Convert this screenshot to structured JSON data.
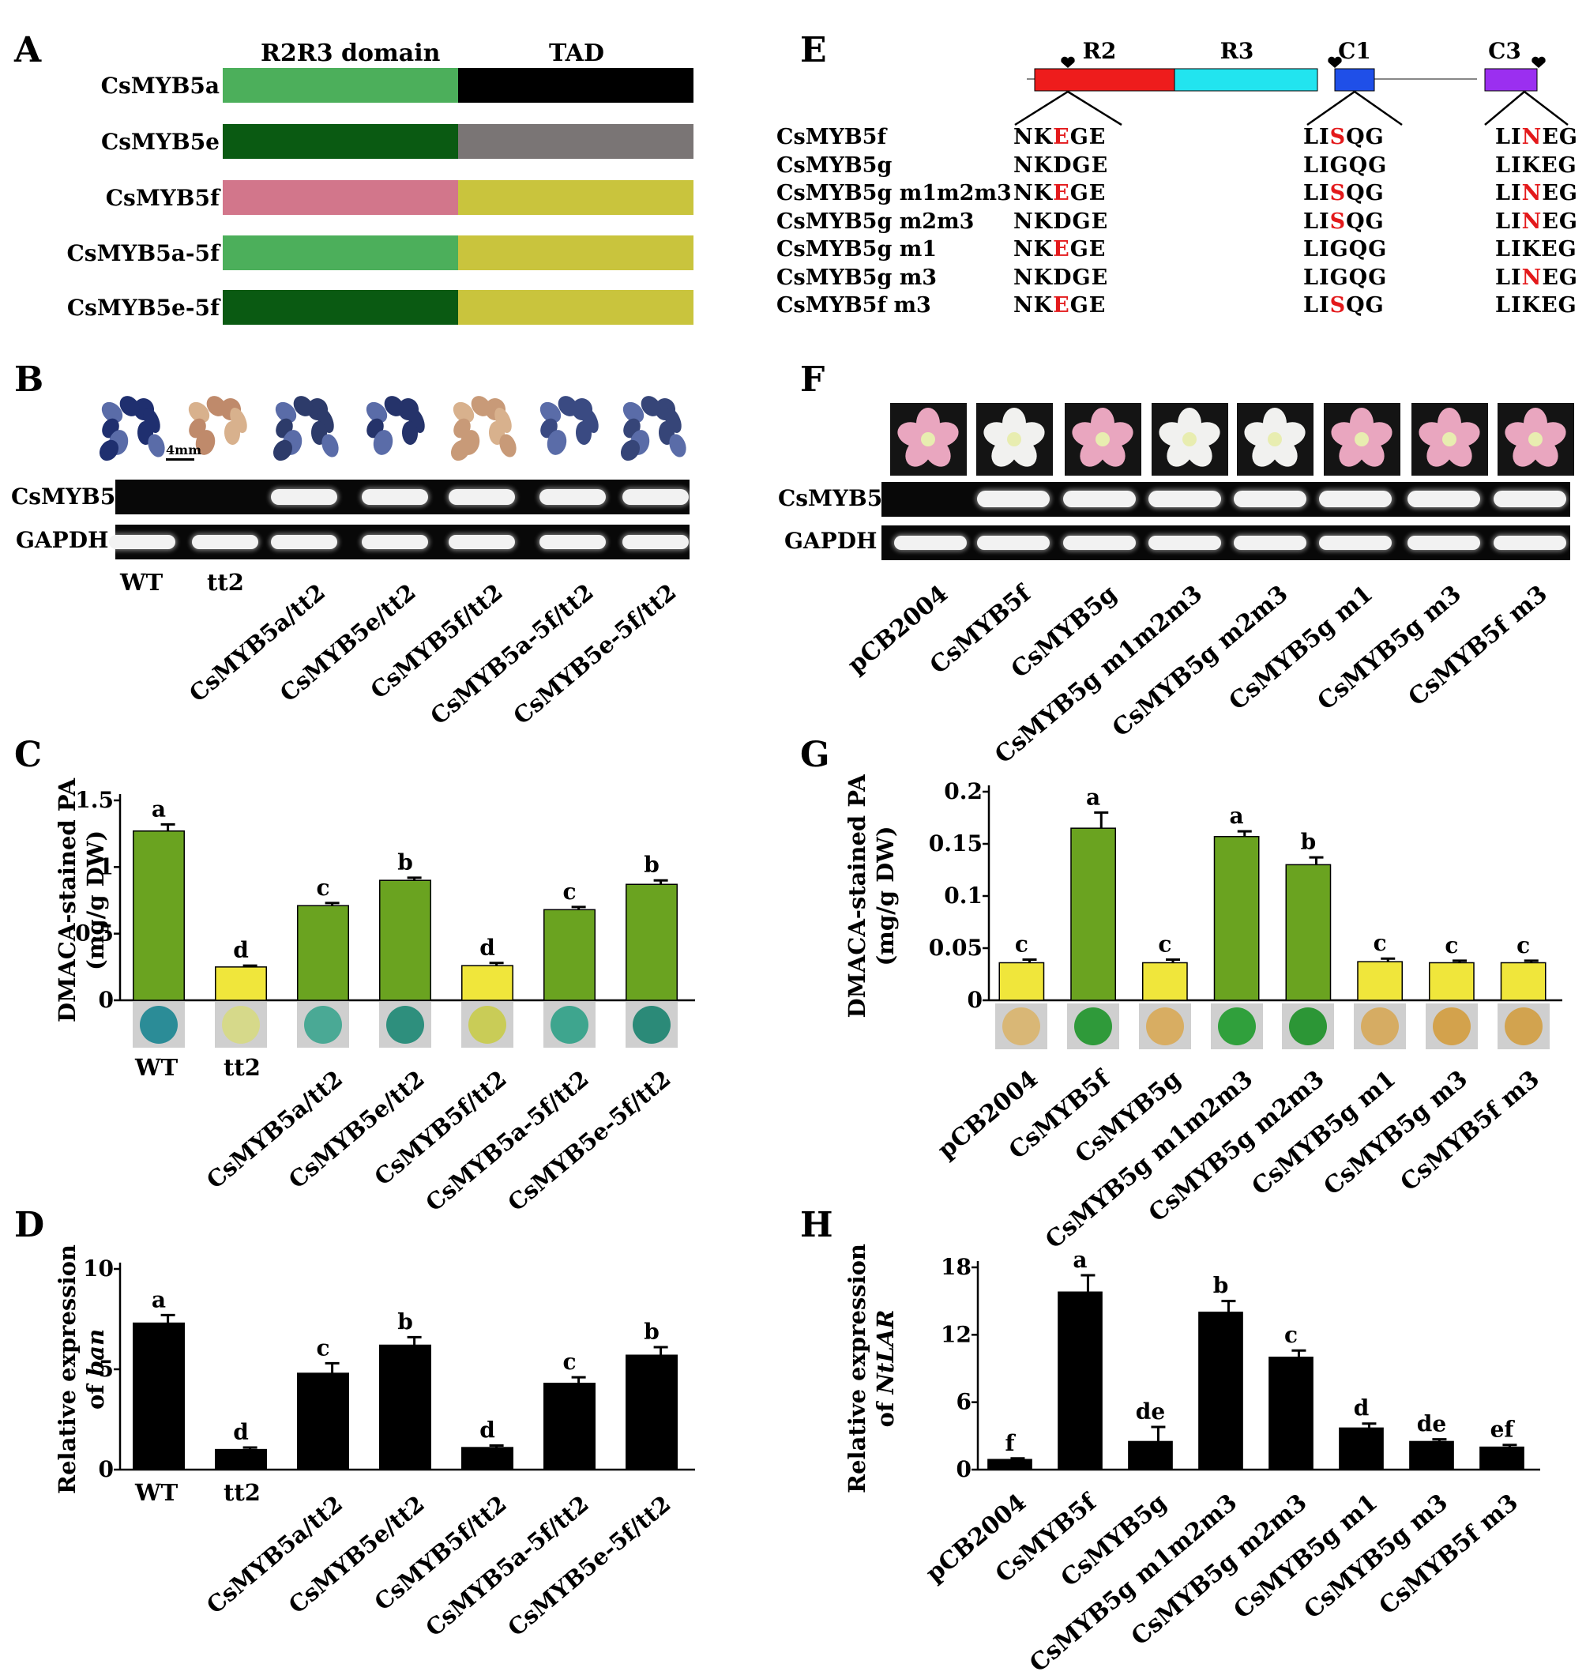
{
  "panels": {
    "A": {
      "letter": "A",
      "header_left": "R2R3 domain",
      "header_right": "TAD",
      "constructs": [
        {
          "name": "CsMYB5a",
          "left_color": "#4caf5b",
          "right_color": "#000000"
        },
        {
          "name": "CsMYB5e",
          "left_color": "#0a5a12",
          "right_color": "#7a7575"
        },
        {
          "name": "CsMYB5f",
          "left_color": "#d2768b",
          "right_color": "#c9c43d"
        },
        {
          "name": "CsMYB5a-5f",
          "left_color": "#4caf5b",
          "right_color": "#c9c43d"
        },
        {
          "name": "CsMYB5e-5f",
          "left_color": "#0a5a12",
          "right_color": "#c9c43d"
        }
      ]
    },
    "B": {
      "letter": "B",
      "scale_label": "4mm",
      "gel_rows": [
        "CsMYB5",
        "GAPDH"
      ],
      "lanes": [
        "WT",
        "tt2",
        "CsMYB5a/tt2",
        "CsMYB5e/tt2",
        "CsMYB5f/tt2",
        "CsMYB5a-5f/tt2",
        "CsMYB5e-5f/tt2"
      ],
      "band_present": {
        "CsMYB5": [
          false,
          false,
          true,
          true,
          true,
          true,
          true
        ],
        "GAPDH": [
          true,
          true,
          true,
          true,
          true,
          true,
          true
        ]
      }
    },
    "E": {
      "letter": "E",
      "domains": [
        "R2",
        "R3",
        "C1",
        "C3"
      ],
      "rows": [
        {
          "name": "CsMYB5f",
          "s1": [
            "NK",
            "E",
            "GE"
          ],
          "s2": [
            "LI",
            "S",
            "QG"
          ],
          "s3": [
            "LI",
            "N",
            "EG"
          ]
        },
        {
          "name": "CsMYB5g",
          "s1": [
            "NKDGE",
            "",
            ""
          ],
          "s2": [
            "LIGQG",
            "",
            ""
          ],
          "s3": [
            "LIKEG",
            "",
            ""
          ]
        },
        {
          "name": "CsMYB5g m1m2m3",
          "s1": [
            "NK",
            "E",
            "GE"
          ],
          "s2": [
            "LI",
            "S",
            "QG"
          ],
          "s3": [
            "LI",
            "N",
            "EG"
          ]
        },
        {
          "name": "CsMYB5g m2m3",
          "s1": [
            "NKDGE",
            "",
            ""
          ],
          "s2": [
            "LI",
            "S",
            "QG"
          ],
          "s3": [
            "LI",
            "N",
            "EG"
          ]
        },
        {
          "name": "CsMYB5g m1",
          "s1": [
            "NK",
            "E",
            "GE"
          ],
          "s2": [
            "LIGQG",
            "",
            ""
          ],
          "s3": [
            "LIKEG",
            "",
            ""
          ]
        },
        {
          "name": "CsMYB5g m3",
          "s1": [
            "NKDGE",
            "",
            ""
          ],
          "s2": [
            "LIGQG",
            "",
            ""
          ],
          "s3": [
            "LI",
            "N",
            "EG"
          ]
        },
        {
          "name": "CsMYB5f m3",
          "s1": [
            "NK",
            "E",
            "GE"
          ],
          "s2": [
            "LI",
            "S",
            "QG"
          ],
          "s3": [
            "LIKEG",
            "",
            ""
          ]
        }
      ]
    },
    "F": {
      "letter": "F",
      "gel_rows": [
        "CsMYB5",
        "GAPDH"
      ],
      "lanes": [
        "pCB2004",
        "CsMYB5f",
        "CsMYB5g",
        "CsMYB5g m1m2m3",
        "CsMYB5g m2m3",
        "CsMYB5g m1",
        "CsMYB5g m3",
        "CsMYB5f m3"
      ],
      "flower_colors": [
        "pink",
        "white",
        "pink",
        "white",
        "white",
        "pink",
        "pink",
        "pink"
      ],
      "band_present": {
        "CsMYB5": [
          false,
          true,
          true,
          true,
          true,
          true,
          true,
          true
        ],
        "GAPDH": [
          true,
          true,
          true,
          true,
          true,
          true,
          true,
          true
        ]
      }
    }
  },
  "chart_data": [
    {
      "panel": "C",
      "type": "bar",
      "ylabel": "DMACA-stained PA (mg/g DW)",
      "ylim": [
        0,
        1.5
      ],
      "yticks": [
        "0",
        "0.5",
        "1",
        "1.5"
      ],
      "categories": [
        "WT",
        "tt2",
        "CsMYB5a/tt2",
        "CsMYB5e/tt2",
        "CsMYB5f/tt2",
        "CsMYB5a-5f/tt2",
        "CsMYB5e-5f/tt2"
      ],
      "values": [
        1.27,
        0.25,
        0.71,
        0.9,
        0.26,
        0.68,
        0.87
      ],
      "errors": [
        0.05,
        0.01,
        0.02,
        0.02,
        0.02,
        0.02,
        0.03
      ],
      "letters": [
        "a",
        "d",
        "c",
        "b",
        "d",
        "c",
        "b"
      ],
      "bar_colors": [
        "#6aa320",
        "#f0e63b",
        "#6aa320",
        "#6aa320",
        "#f0e63b",
        "#6aa320",
        "#6aa320"
      ],
      "well_colors": [
        "#2b8c97",
        "#d6d98a",
        "#4aa995",
        "#2e8f7d",
        "#c9cc57",
        "#3ea58e",
        "#2b8a78"
      ]
    },
    {
      "panel": "D",
      "type": "bar",
      "ylabel": "Relative expression of ban",
      "ylim": [
        0,
        10
      ],
      "yticks": [
        "0",
        "5",
        "10"
      ],
      "categories": [
        "WT",
        "tt2",
        "CsMYB5a/tt2",
        "CsMYB5e/tt2",
        "CsMYB5f/tt2",
        "CsMYB5a-5f/tt2",
        "CsMYB5e-5f/tt2"
      ],
      "values": [
        7.3,
        1.0,
        4.8,
        6.2,
        1.1,
        4.3,
        5.7
      ],
      "errors": [
        0.4,
        0.1,
        0.5,
        0.4,
        0.1,
        0.3,
        0.4
      ],
      "letters": [
        "a",
        "d",
        "c",
        "b",
        "d",
        "c",
        "b"
      ]
    },
    {
      "panel": "G",
      "type": "bar",
      "ylabel": "DMACA-stained PA (mg/g DW)",
      "ylim": [
        0,
        0.2
      ],
      "yticks": [
        "0",
        "0.05",
        "0.1",
        "0.15",
        "0.2"
      ],
      "categories": [
        "pCB2004",
        "CsMYB5f",
        "CsMYB5g",
        "CsMYB5g m1m2m3",
        "CsMYB5g m2m3",
        "CsMYB5g m1",
        "CsMYB5g m3",
        "CsMYB5f m3"
      ],
      "values": [
        0.036,
        0.165,
        0.036,
        0.157,
        0.13,
        0.037,
        0.036,
        0.036
      ],
      "errors": [
        0.003,
        0.015,
        0.003,
        0.005,
        0.007,
        0.003,
        0.002,
        0.002
      ],
      "letters": [
        "c",
        "a",
        "c",
        "a",
        "b",
        "c",
        "c",
        "c"
      ],
      "bar_colors": [
        "#f0e63b",
        "#6aa320",
        "#f0e63b",
        "#6aa320",
        "#6aa320",
        "#f0e63b",
        "#f0e63b",
        "#f0e63b"
      ],
      "well_colors": [
        "#d9b776",
        "#2f9a3a",
        "#d8ad62",
        "#30a03c",
        "#2c9636",
        "#d6ac63",
        "#d3a24c",
        "#d2a34f"
      ]
    },
    {
      "panel": "H",
      "type": "bar",
      "ylabel": "Relative expression of NtLAR",
      "ylim": [
        0,
        18
      ],
      "yticks": [
        "0",
        "6",
        "12",
        "18"
      ],
      "categories": [
        "pCB2004",
        "CsMYB5f",
        "CsMYB5g",
        "CsMYB5g m1m2m3",
        "CsMYB5g m2m3",
        "CsMYB5g m1",
        "CsMYB5g m3",
        "CsMYB5f m3"
      ],
      "values": [
        0.9,
        15.8,
        2.5,
        14.0,
        10.0,
        3.7,
        2.5,
        2.0
      ],
      "errors": [
        0.1,
        1.5,
        1.3,
        1.0,
        0.6,
        0.4,
        0.2,
        0.2
      ],
      "letters": [
        "f",
        "a",
        "de",
        "b",
        "c",
        "d",
        "de",
        "ef"
      ]
    }
  ]
}
